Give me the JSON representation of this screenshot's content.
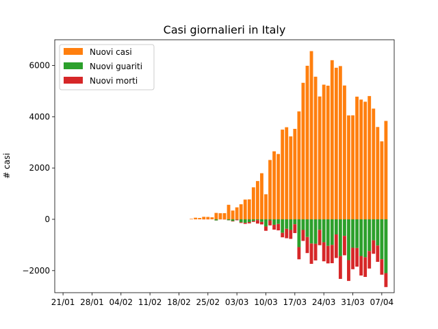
{
  "chart_data": {
    "type": "bar",
    "stacked": true,
    "title": "Casi giornalieri in Italy",
    "xlabel": "",
    "ylabel": "# casi",
    "ylim": [
      -2860,
      7000
    ],
    "grid": false,
    "legend_position": "top-left",
    "x_start": "2020-01-19",
    "x_end": "2020-04-10",
    "x_ticks": [
      "21/01",
      "28/01",
      "04/02",
      "11/02",
      "18/02",
      "25/02",
      "03/03",
      "10/03",
      "17/03",
      "24/03",
      "31/03",
      "07/04"
    ],
    "x_tick_dates": [
      "2020-01-21",
      "2020-01-28",
      "2020-02-04",
      "2020-02-11",
      "2020-02-18",
      "2020-02-25",
      "2020-03-03",
      "2020-03-10",
      "2020-03-17",
      "2020-03-24",
      "2020-03-31",
      "2020-04-07"
    ],
    "y_ticks": [
      -2000,
      0,
      2000,
      4000,
      6000
    ],
    "y_tick_labels": [
      "−2000",
      "0",
      "2000",
      "4000",
      "6000"
    ],
    "dates": [
      "2020-02-21",
      "2020-02-22",
      "2020-02-23",
      "2020-02-24",
      "2020-02-25",
      "2020-02-26",
      "2020-02-27",
      "2020-02-28",
      "2020-02-29",
      "2020-03-01",
      "2020-03-02",
      "2020-03-03",
      "2020-03-04",
      "2020-03-05",
      "2020-03-06",
      "2020-03-07",
      "2020-03-08",
      "2020-03-09",
      "2020-03-10",
      "2020-03-11",
      "2020-03-12",
      "2020-03-13",
      "2020-03-14",
      "2020-03-15",
      "2020-03-16",
      "2020-03-17",
      "2020-03-18",
      "2020-03-19",
      "2020-03-20",
      "2020-03-21",
      "2020-03-22",
      "2020-03-23",
      "2020-03-24",
      "2020-03-25",
      "2020-03-26",
      "2020-03-27",
      "2020-03-28",
      "2020-03-29",
      "2020-03-30",
      "2020-03-31",
      "2020-04-01",
      "2020-04-02",
      "2020-04-03",
      "2020-04-04",
      "2020-04-05",
      "2020-04-06",
      "2020-04-07",
      "2020-04-08"
    ],
    "series": [
      {
        "name": "Nuovi casi",
        "color": "#ff7f0e",
        "values": [
          20,
          62,
          53,
          97,
          93,
          78,
          250,
          238,
          240,
          566,
          342,
          466,
          587,
          769,
          778,
          1247,
          1492,
          1797,
          977,
          2313,
          2651,
          2547,
          3497,
          3590,
          3233,
          3526,
          4207,
          5322,
          5986,
          6557,
          5560,
          4789,
          5249,
          5210,
          6203,
          5909,
          5974,
          5217,
          4050,
          4053,
          4782,
          4668,
          4585,
          4805,
          4316,
          3599,
          3039,
          3836
        ]
      },
      {
        "name": "Nuovi guariti",
        "color": "#2ca02c",
        "values": [
          0,
          1,
          0,
          0,
          1,
          0,
          -42,
          1,
          0,
          -37,
          -66,
          -11,
          -116,
          -138,
          -109,
          -66,
          -33,
          -102,
          -280,
          -41,
          -213,
          -181,
          -527,
          -369,
          -414,
          -192,
          -1084,
          -415,
          -689,
          -943,
          -952,
          -408,
          -894,
          -1036,
          -999,
          -589,
          -1434,
          -646,
          -1590,
          -1109,
          -1118,
          -1431,
          -1480,
          -1238,
          -819,
          -1022,
          -1555,
          -2099
        ]
      },
      {
        "name": "Nuovi morti",
        "color": "#d62728",
        "values": [
          -1,
          -1,
          -1,
          -4,
          -4,
          -1,
          -5,
          -4,
          -8,
          -5,
          -18,
          -27,
          -28,
          -41,
          -49,
          -36,
          -133,
          -97,
          -168,
          -196,
          -189,
          -250,
          -175,
          -368,
          -349,
          -345,
          -475,
          -427,
          -627,
          -793,
          -651,
          -601,
          -743,
          -683,
          -712,
          -919,
          -889,
          -756,
          -812,
          -837,
          -727,
          -760,
          -766,
          -681,
          -525,
          -636,
          -604,
          -542
        ]
      }
    ]
  }
}
